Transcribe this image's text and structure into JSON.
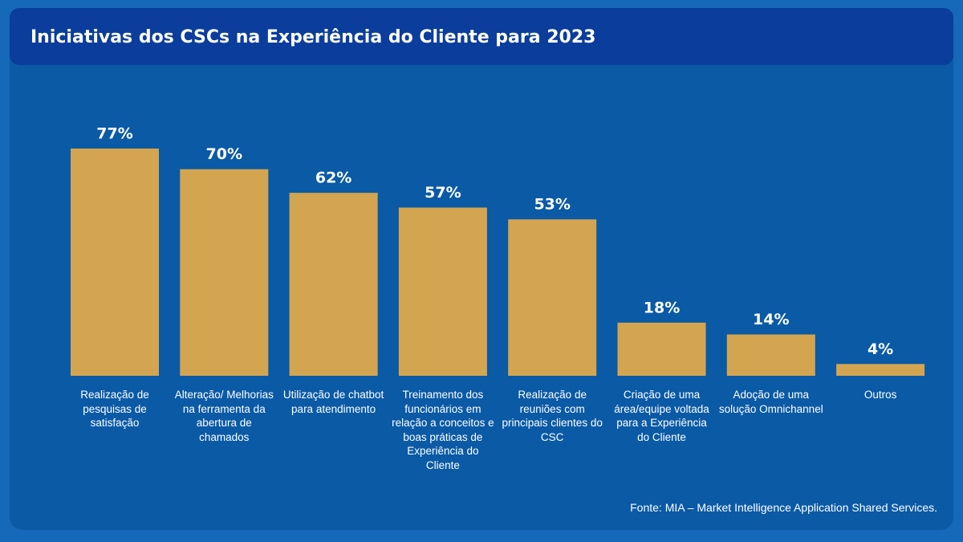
{
  "chart_data": {
    "type": "bar",
    "title": "Iniciativas dos CSCs na Experiência do Cliente para 2023",
    "categories": [
      "Realização de pesquisas de satisfação",
      "Alteração/ Melhorias na ferramenta da abertura de chamados",
      "Utilização de chatbot para atendimento",
      "Treinamento dos funcionários em relação a conceitos e boas práticas de Experiência do Cliente",
      "Realização de reuniões com principais clientes do CSC",
      "Criação de uma área/equipe voltada para a Experiência do Cliente",
      "Adoção de uma solução Omnichannel",
      "Outros"
    ],
    "values": [
      77,
      70,
      62,
      57,
      53,
      18,
      14,
      4
    ],
    "value_labels": [
      "77%",
      "70%",
      "62%",
      "57%",
      "53%",
      "18%",
      "14%",
      "4%"
    ],
    "color": "#d4a550",
    "source": "Fonte: MIA – Market Intelligence Application Shared Services."
  }
}
